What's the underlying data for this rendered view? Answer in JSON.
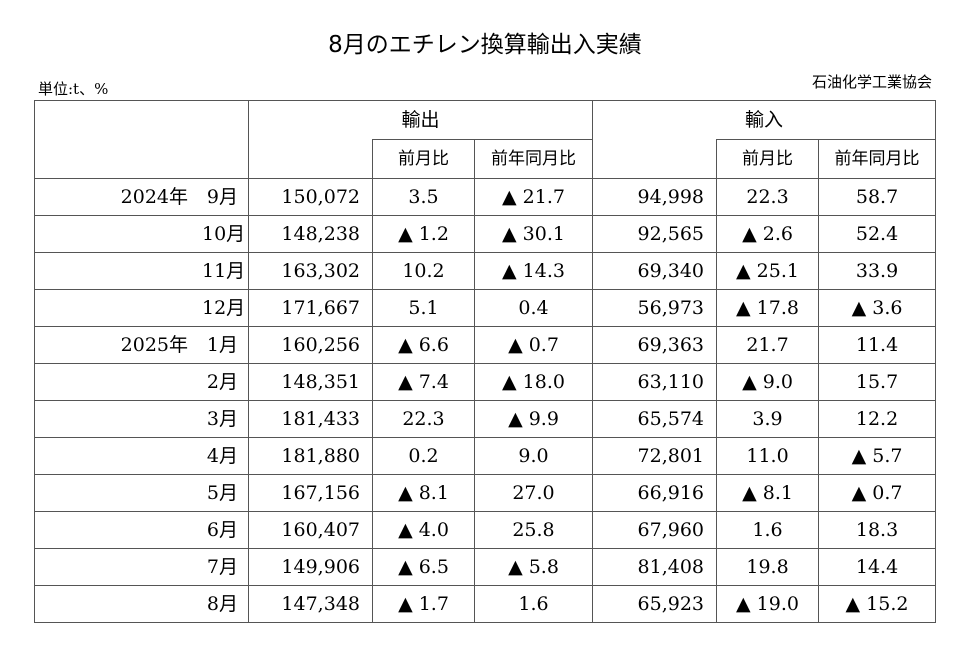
{
  "title": "8月のエチレン換算輸出入実績",
  "unit_label": "単位:t、%",
  "source": "石油化学工業協会",
  "header": {
    "export": "輸出",
    "import": "輸入",
    "mom": "前月比",
    "yoy": "前年同月比"
  },
  "neg_mark": "▲",
  "rows": [
    {
      "year": "2024年",
      "month": "9月",
      "export": "150,072",
      "export_mom": "3.5",
      "export_yoy": "▲ 21.7",
      "import": "94,998",
      "import_mom": "22.3",
      "import_yoy": "58.7"
    },
    {
      "year": "",
      "month": "10月",
      "export": "148,238",
      "export_mom": "▲ 1.2",
      "export_yoy": "▲ 30.1",
      "import": "92,565",
      "import_mom": "▲ 2.6",
      "import_yoy": "52.4"
    },
    {
      "year": "",
      "month": "11月",
      "export": "163,302",
      "export_mom": "10.2",
      "export_yoy": "▲ 14.3",
      "import": "69,340",
      "import_mom": "▲ 25.1",
      "import_yoy": "33.9"
    },
    {
      "year": "",
      "month": "12月",
      "export": "171,667",
      "export_mom": "5.1",
      "export_yoy": "0.4",
      "import": "56,973",
      "import_mom": "▲ 17.8",
      "import_yoy": "▲ 3.6"
    },
    {
      "year": "2025年",
      "month": "1月",
      "export": "160,256",
      "export_mom": "▲ 6.6",
      "export_yoy": "▲ 0.7",
      "import": "69,363",
      "import_mom": "21.7",
      "import_yoy": "11.4"
    },
    {
      "year": "",
      "month": "2月",
      "export": "148,351",
      "export_mom": "▲ 7.4",
      "export_yoy": "▲ 18.0",
      "import": "63,110",
      "import_mom": "▲ 9.0",
      "import_yoy": "15.7"
    },
    {
      "year": "",
      "month": "3月",
      "export": "181,433",
      "export_mom": "22.3",
      "export_yoy": "▲ 9.9",
      "import": "65,574",
      "import_mom": "3.9",
      "import_yoy": "12.2"
    },
    {
      "year": "",
      "month": "4月",
      "export": "181,880",
      "export_mom": "0.2",
      "export_yoy": "9.0",
      "import": "72,801",
      "import_mom": "11.0",
      "import_yoy": "▲ 5.7"
    },
    {
      "year": "",
      "month": "5月",
      "export": "167,156",
      "export_mom": "▲ 8.1",
      "export_yoy": "27.0",
      "import": "66,916",
      "import_mom": "▲ 8.1",
      "import_yoy": "▲ 0.7"
    },
    {
      "year": "",
      "month": "6月",
      "export": "160,407",
      "export_mom": "▲ 4.0",
      "export_yoy": "25.8",
      "import": "67,960",
      "import_mom": "1.6",
      "import_yoy": "18.3"
    },
    {
      "year": "",
      "month": "7月",
      "export": "149,906",
      "export_mom": "▲ 6.5",
      "export_yoy": "▲ 5.8",
      "import": "81,408",
      "import_mom": "19.8",
      "import_yoy": "14.4"
    },
    {
      "year": "",
      "month": "8月",
      "export": "147,348",
      "export_mom": "▲ 1.7",
      "export_yoy": "1.6",
      "import": "65,923",
      "import_mom": "▲ 19.0",
      "import_yoy": "▲ 15.2"
    }
  ]
}
